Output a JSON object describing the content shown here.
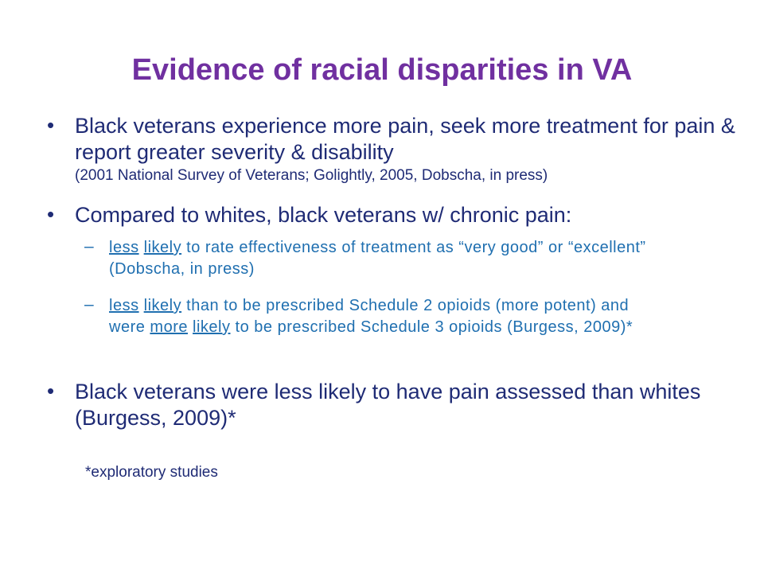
{
  "slide": {
    "title": "Evidence of racial disparities in VA",
    "bullets": [
      {
        "marker": "•",
        "text": "Black veterans experience more pain, seek more treatment for pain & report greater severity & disability",
        "citation": "(2001 National Survey of Veterans; Golightly, 2005, Dobscha, in press)"
      },
      {
        "marker": "•",
        "text": "Compared to whites, black veterans w/ chronic pain:"
      },
      {
        "marker": "•",
        "text": "Black veterans were less likely to have pain assessed than whites (Burgess, 2009)*"
      }
    ],
    "subbullets": [
      {
        "marker": "–",
        "w1": "less",
        "w2": "likely",
        "rest": " to rate effectiveness of treatment as “very good” or “excellent” (Dobscha, in press)"
      },
      {
        "marker": "–",
        "w1": "less",
        "w2": "likely",
        "mid": " than to be prescribed Schedule 2 opioids (more potent) and were ",
        "w3": "more",
        "w4": "likely",
        "rest": " to be prescribed Schedule 3 opioids (Burgess, 2009)*"
      }
    ],
    "footnote": "*exploratory studies"
  }
}
